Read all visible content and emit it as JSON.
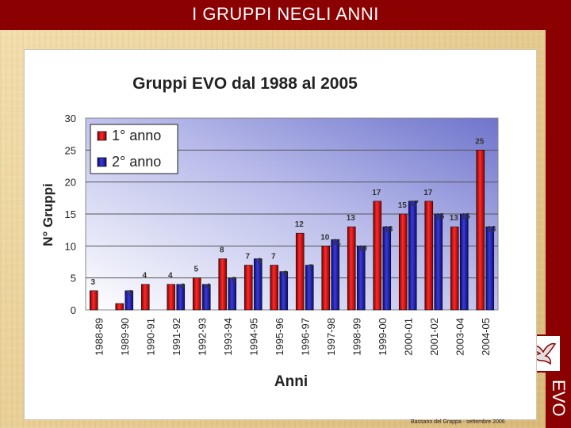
{
  "slide": {
    "title": "I GRUPPI NEGLI ANNI",
    "side_label": "EVO",
    "footer": "Bassano del Grappa - settembre 2006",
    "logo_icon": "dove-icon",
    "colors": {
      "title_bar": "#8b0000",
      "background": "#e9cf95"
    }
  },
  "chart_data": {
    "type": "bar",
    "title": "Gruppi EVO dal 1988 al 2005",
    "xlabel": "Anni",
    "ylabel": "N° Gruppi",
    "ylim": [
      0,
      30
    ],
    "yticks": [
      0,
      5,
      10,
      15,
      20,
      25,
      30
    ],
    "grid": true,
    "legend_position": "top-left",
    "categories": [
      "1988-89",
      "1989-90",
      "1990-91",
      "1991-92",
      "1992-93",
      "1993-94",
      "1994-95",
      "1995-96",
      "1996-97",
      "1997-98",
      "1998-99",
      "1999-00",
      "2000-01",
      "2001-02",
      "2003-04",
      "2004-05"
    ],
    "series": [
      {
        "name": "1° anno",
        "color": "#e00000",
        "values": [
          3,
          1,
          4,
          4,
          5,
          8,
          7,
          7,
          12,
          10,
          13,
          17,
          15,
          17,
          13,
          25
        ],
        "labels": [
          "3",
          "",
          "4",
          "4",
          "5",
          "8",
          "7",
          "7",
          "12",
          "10",
          "13",
          "17",
          "15",
          "17",
          "13",
          "25"
        ]
      },
      {
        "name": "2° anno",
        "color": "#1a1aa6",
        "values": [
          0,
          3,
          0,
          4,
          4,
          5,
          8,
          6,
          7,
          11,
          10,
          13,
          17,
          15,
          15,
          13
        ],
        "labels": [
          "",
          "3",
          "",
          "4",
          "4",
          "5",
          "8",
          "6",
          "7",
          "11",
          "10",
          "13",
          "17",
          "15",
          "15",
          "13"
        ]
      }
    ]
  }
}
